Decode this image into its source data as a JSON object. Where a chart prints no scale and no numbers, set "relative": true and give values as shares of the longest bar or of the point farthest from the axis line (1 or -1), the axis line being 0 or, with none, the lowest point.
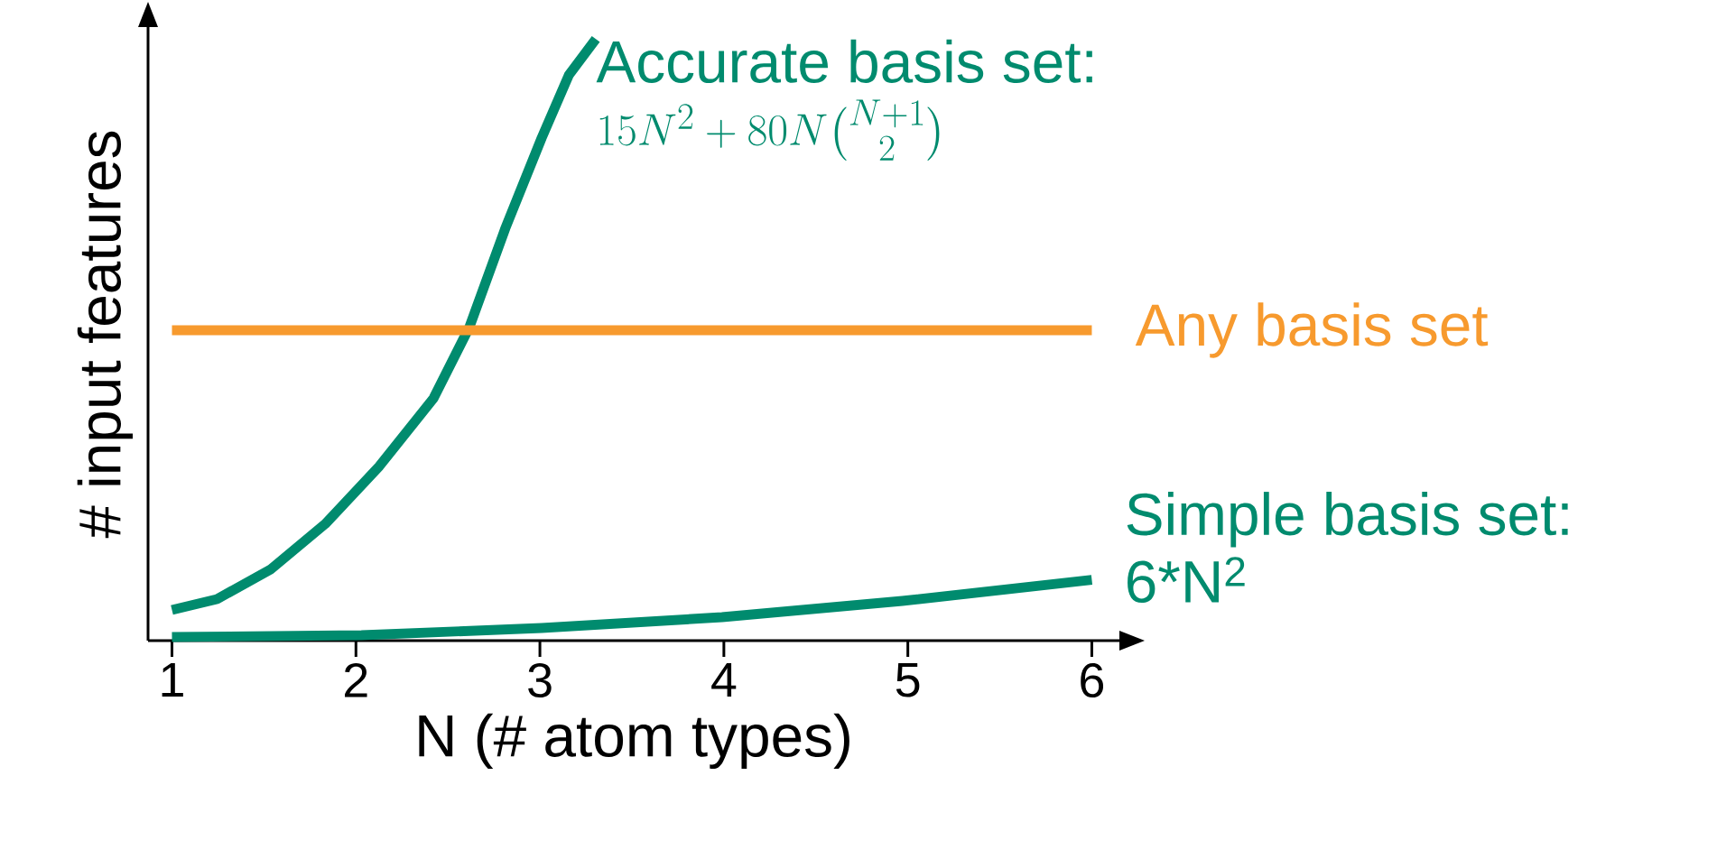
{
  "chart_data": {
    "type": "line",
    "relative": true,
    "xlabel": "N (# atom types)",
    "ylabel": "# input features",
    "xlim": [
      0.87,
      6.15
    ],
    "xticks": [
      1,
      2,
      3,
      4,
      5,
      6
    ],
    "tick_labels": "x",
    "marker": "none",
    "line_style": "solid",
    "series": [
      {
        "name": "Accurate basis set:",
        "color": "#008b6e",
        "x": [
          1.0,
          1.245,
          1.539,
          1.833,
          2.127,
          2.422,
          2.618,
          2.814,
          3.01,
          3.157,
          3.304
        ],
        "values": [
          0.051,
          0.069,
          0.119,
          0.194,
          0.29,
          0.403,
          0.522,
          0.687,
          0.836,
          0.94,
          1.0
        ]
      },
      {
        "name": "Any basis set",
        "color": "#f79a2e",
        "x": [
          1.0,
          6.0
        ],
        "values": [
          0.516,
          0.516
        ]
      },
      {
        "name": "Simple basis set:",
        "color": "#008b6e",
        "x": [
          1.0,
          2.03,
          3.01,
          3.99,
          4.97,
          6.0
        ],
        "values": [
          0.006,
          0.009,
          0.021,
          0.039,
          0.066,
          0.101
        ]
      }
    ],
    "annotations": [
      "15N^2 + 80N\\binom{N+1}{2}",
      "6*N$^{2}$"
    ]
  }
}
